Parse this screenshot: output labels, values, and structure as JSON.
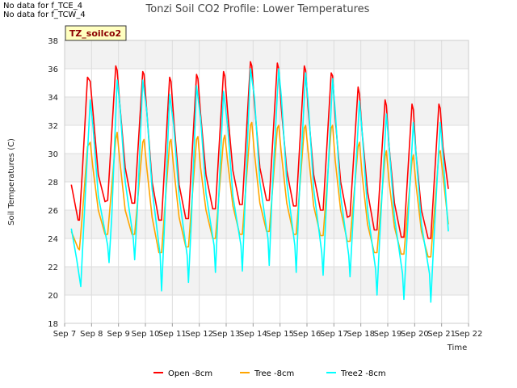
{
  "notes": [
    "No data for f_TCE_4",
    "No data for f_TCW_4"
  ],
  "chart_data": {
    "type": "line",
    "title": "Tonzi Soil CO2 Profile: Lower Temperatures",
    "xlabel": "Time",
    "ylabel": "Soil Temperatures (C)",
    "badge": "TZ_soilco2",
    "xlim": [
      7,
      22
    ],
    "ylim": [
      18,
      38
    ],
    "yticks": [
      18,
      20,
      22,
      24,
      26,
      28,
      30,
      32,
      34,
      36,
      38
    ],
    "xticks": [
      {
        "value": 7,
        "label": "Sep 7"
      },
      {
        "value": 8,
        "label": "Sep 8"
      },
      {
        "value": 9,
        "label": "Sep 9"
      },
      {
        "value": 10,
        "label": "Sep 10"
      },
      {
        "value": 11,
        "label": "Sep 11"
      },
      {
        "value": 12,
        "label": "Sep 12"
      },
      {
        "value": 13,
        "label": "Sep 13"
      },
      {
        "value": 14,
        "label": "Sep 14"
      },
      {
        "value": 15,
        "label": "Sep 15"
      },
      {
        "value": 16,
        "label": "Sep 16"
      },
      {
        "value": 17,
        "label": "Sep 17"
      },
      {
        "value": 18,
        "label": "Sep 18"
      },
      {
        "value": 19,
        "label": "Sep 19"
      },
      {
        "value": 20,
        "label": "Sep 20"
      },
      {
        "value": 21,
        "label": "Sep 21"
      },
      {
        "value": 22,
        "label": "Sep 22"
      }
    ],
    "grid": true,
    "legend_position": "bottom",
    "series": [
      {
        "name": "Open -8cm",
        "color": "#ff0000",
        "x": [
          7.25,
          7.5,
          7.55,
          7.65,
          7.85,
          7.95,
          8.05,
          8.25,
          8.5,
          8.6,
          8.9,
          8.95,
          9.05,
          9.25,
          9.5,
          9.6,
          9.9,
          9.95,
          10.05,
          10.25,
          10.5,
          10.6,
          10.9,
          10.95,
          11.05,
          11.25,
          11.5,
          11.6,
          11.9,
          11.95,
          12.05,
          12.25,
          12.5,
          12.6,
          12.9,
          12.95,
          13.05,
          13.25,
          13.5,
          13.6,
          13.9,
          13.95,
          14.05,
          14.25,
          14.5,
          14.6,
          14.9,
          14.95,
          15.05,
          15.25,
          15.5,
          15.6,
          15.9,
          15.95,
          16.05,
          16.25,
          16.5,
          16.6,
          16.9,
          16.95,
          17.05,
          17.25,
          17.5,
          17.6,
          17.9,
          17.95,
          18.05,
          18.25,
          18.5,
          18.6,
          18.9,
          18.95,
          19.05,
          19.25,
          19.5,
          19.6,
          19.9,
          19.95,
          20.05,
          20.25,
          20.5,
          20.6,
          20.9,
          20.95,
          21.05,
          21.25
        ],
        "y": [
          27.8,
          25.3,
          25.3,
          28.5,
          35.4,
          35.1,
          33.0,
          28.5,
          26.6,
          26.7,
          36.2,
          35.9,
          33.5,
          29.0,
          26.5,
          26.5,
          35.8,
          35.6,
          33.0,
          28.0,
          25.3,
          25.3,
          35.4,
          35.1,
          32.5,
          27.8,
          25.4,
          25.4,
          35.6,
          35.3,
          32.8,
          28.5,
          26.1,
          26.1,
          35.8,
          35.5,
          33.0,
          28.8,
          26.4,
          26.4,
          36.5,
          36.2,
          33.5,
          29.0,
          26.7,
          26.7,
          36.4,
          36.0,
          33.2,
          28.8,
          26.3,
          26.3,
          36.2,
          35.9,
          33.0,
          28.5,
          26.0,
          26.0,
          35.7,
          35.5,
          32.5,
          28.0,
          25.5,
          25.6,
          34.7,
          34.2,
          31.5,
          27.3,
          24.6,
          24.6,
          33.8,
          33.4,
          30.5,
          26.5,
          24.1,
          24.1,
          33.5,
          33.1,
          30.0,
          26.0,
          24.0,
          24.0,
          33.5,
          33.2,
          30.5,
          27.5
        ]
      },
      {
        "name": "Tree -8cm",
        "color": "#ffa500",
        "x": [
          7.25,
          7.5,
          7.55,
          7.65,
          7.85,
          7.95,
          8.05,
          8.25,
          8.5,
          8.6,
          8.9,
          8.95,
          9.05,
          9.25,
          9.5,
          9.6,
          9.9,
          9.95,
          10.05,
          10.25,
          10.5,
          10.6,
          10.9,
          10.95,
          11.05,
          11.25,
          11.5,
          11.6,
          11.9,
          11.95,
          12.05,
          12.25,
          12.5,
          12.6,
          12.9,
          12.95,
          13.05,
          13.25,
          13.5,
          13.6,
          13.9,
          13.95,
          14.05,
          14.25,
          14.5,
          14.6,
          14.9,
          14.95,
          15.05,
          15.25,
          15.5,
          15.6,
          15.9,
          15.95,
          16.05,
          16.25,
          16.5,
          16.6,
          16.9,
          16.95,
          17.05,
          17.25,
          17.5,
          17.6,
          17.9,
          17.95,
          18.05,
          18.25,
          18.5,
          18.6,
          18.9,
          18.95,
          19.05,
          19.25,
          19.5,
          19.6,
          19.9,
          19.95,
          20.05,
          20.25,
          20.5,
          20.6,
          20.9,
          20.95,
          21.05,
          21.25
        ],
        "y": [
          24.5,
          23.3,
          23.2,
          25.5,
          30.5,
          30.8,
          29.0,
          26.0,
          24.3,
          24.3,
          31.0,
          31.5,
          29.5,
          26.0,
          24.3,
          24.3,
          30.8,
          31.0,
          29.0,
          25.5,
          23.0,
          23.0,
          30.8,
          31.0,
          29.0,
          25.5,
          23.4,
          23.4,
          31.0,
          31.2,
          29.0,
          26.0,
          24.0,
          24.0,
          31.0,
          31.3,
          29.5,
          26.3,
          24.3,
          24.3,
          32.0,
          32.2,
          30.0,
          26.5,
          24.5,
          24.5,
          31.8,
          32.0,
          30.0,
          26.5,
          24.3,
          24.3,
          31.8,
          32.0,
          30.0,
          26.3,
          24.2,
          24.2,
          31.8,
          32.0,
          29.5,
          26.0,
          23.8,
          23.8,
          30.5,
          30.8,
          28.5,
          25.0,
          23.0,
          23.0,
          29.8,
          30.2,
          28.0,
          24.8,
          22.9,
          22.9,
          29.5,
          29.9,
          27.8,
          24.5,
          22.7,
          22.7,
          30.0,
          30.2,
          28.5,
          25.0
        ]
      },
      {
        "name": "Tree2 -8cm",
        "color": "#00ffff",
        "x": [
          7.25,
          7.45,
          7.6,
          7.7,
          7.95,
          8.05,
          8.25,
          8.6,
          8.65,
          8.75,
          8.95,
          9.05,
          9.25,
          9.55,
          9.6,
          9.7,
          9.9,
          10.05,
          10.25,
          10.55,
          10.6,
          10.7,
          10.9,
          11.05,
          11.25,
          11.55,
          11.6,
          11.7,
          11.9,
          12.05,
          12.25,
          12.55,
          12.6,
          12.7,
          12.9,
          13.05,
          13.25,
          13.55,
          13.6,
          13.7,
          13.9,
          14.05,
          14.25,
          14.55,
          14.6,
          14.7,
          14.95,
          15.05,
          15.25,
          15.55,
          15.6,
          15.7,
          15.95,
          16.05,
          16.25,
          16.55,
          16.6,
          16.7,
          16.95,
          17.05,
          17.25,
          17.55,
          17.6,
          17.7,
          17.95,
          18.05,
          18.25,
          18.55,
          18.6,
          18.7,
          18.95,
          19.05,
          19.25,
          19.55,
          19.6,
          19.7,
          19.95,
          20.05,
          20.25,
          20.55,
          20.6,
          20.7,
          20.95,
          21.05,
          21.25
        ],
        "y": [
          24.7,
          22.5,
          20.6,
          24.5,
          33.8,
          32.0,
          27.0,
          23.5,
          22.3,
          25.5,
          35.2,
          33.5,
          28.0,
          24.0,
          22.5,
          26.0,
          35.2,
          33.0,
          27.5,
          22.8,
          20.3,
          24.5,
          34.2,
          32.0,
          27.0,
          22.8,
          20.9,
          25.0,
          34.8,
          32.5,
          27.2,
          23.5,
          21.6,
          26.0,
          34.4,
          32.0,
          27.0,
          23.5,
          21.7,
          26.5,
          36.0,
          34.0,
          28.0,
          24.0,
          22.1,
          27.0,
          36.0,
          34.0,
          28.0,
          23.5,
          21.6,
          26.5,
          35.7,
          33.5,
          27.5,
          23.0,
          21.4,
          25.5,
          35.3,
          33.0,
          27.0,
          22.8,
          21.3,
          25.0,
          33.7,
          31.5,
          26.0,
          21.8,
          20.0,
          24.0,
          32.8,
          30.5,
          25.5,
          21.5,
          19.7,
          23.5,
          32.2,
          30.0,
          25.0,
          21.5,
          19.5,
          23.5,
          32.2,
          30.0,
          24.5
        ]
      }
    ]
  }
}
